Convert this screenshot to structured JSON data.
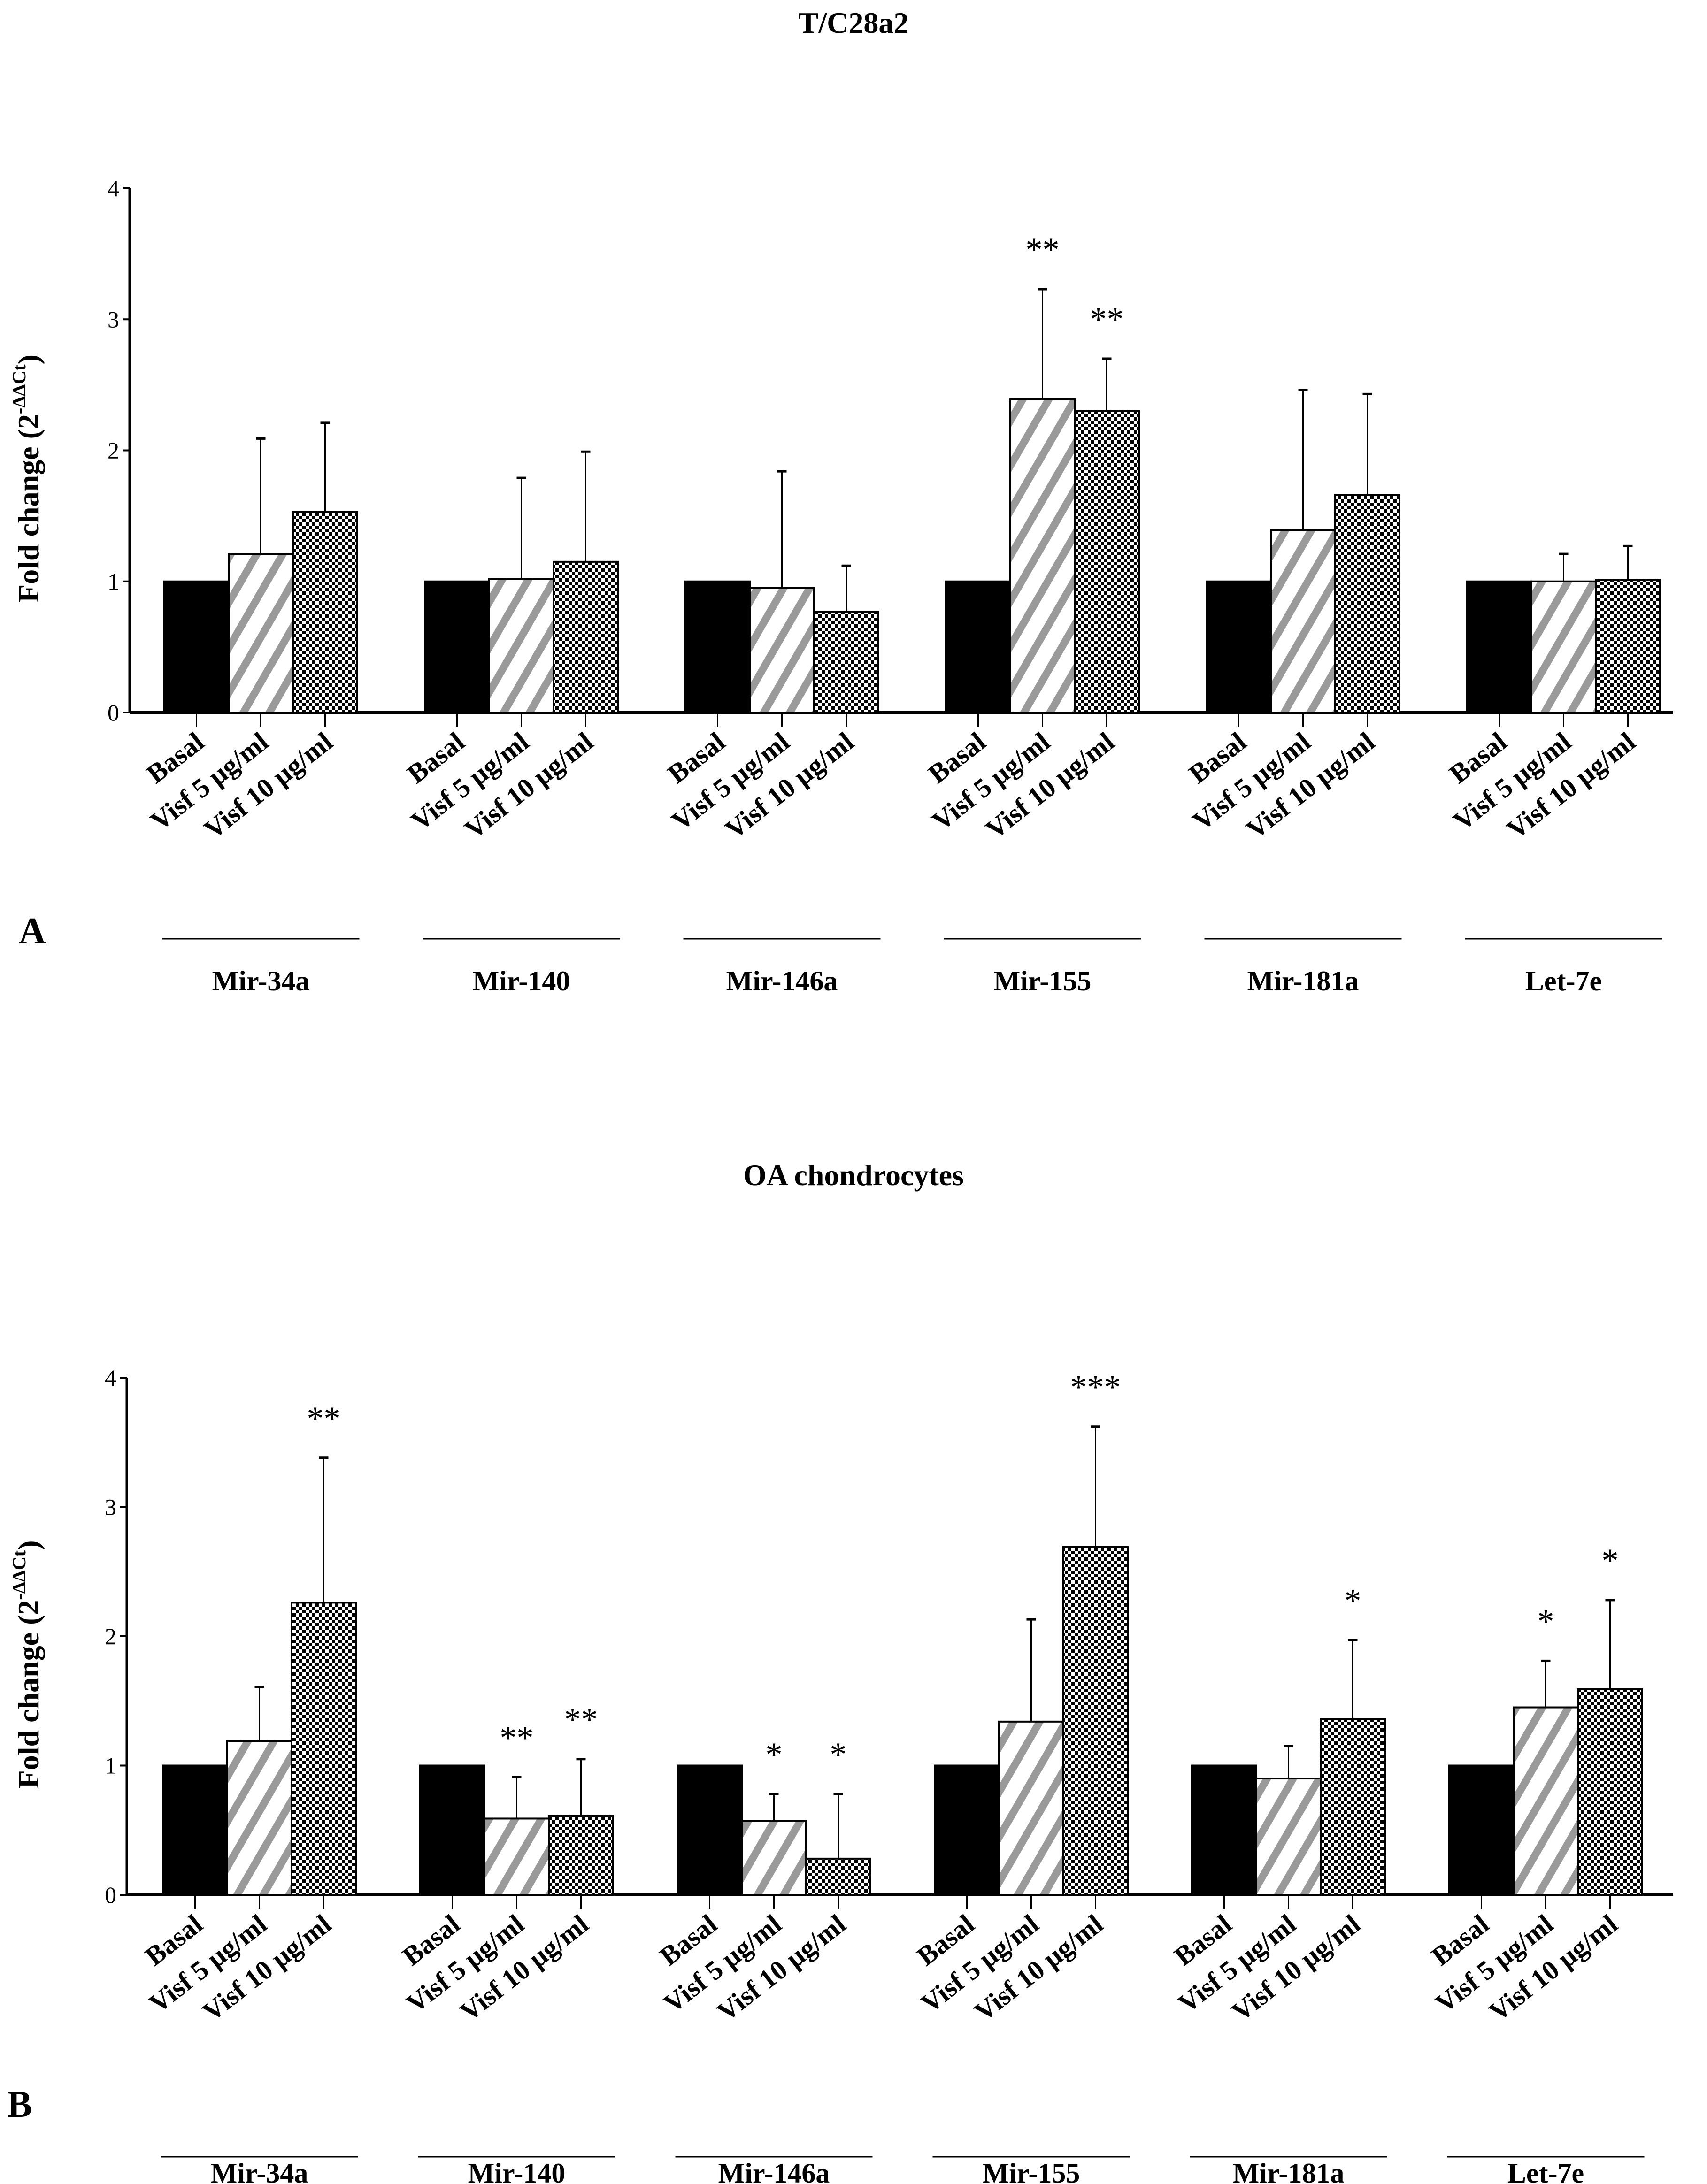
{
  "chart_data": [
    {
      "type": "bar",
      "panel_letter": "A",
      "title": "T/C28a2",
      "ylabel_main": "Fold change (2",
      "ylabel_sup": "-ΔΔCt",
      "ylabel_end": ")",
      "ylim": [
        0,
        4
      ],
      "yticks": [
        "0",
        "1",
        "2",
        "3",
        "4"
      ],
      "bar_labels": [
        "Basal",
        "Visf 5 µg/ml",
        "Visf 10 µg/ml"
      ],
      "groups": [
        "Mir-34a",
        "Mir-140",
        "Mir-146a",
        "Mir-155",
        "Mir-181a",
        "Let-7e"
      ],
      "series": [
        {
          "name": "Basal",
          "values": [
            1,
            1,
            1,
            1,
            1,
            1
          ],
          "err_top": [
            null,
            null,
            null,
            null,
            null,
            null
          ],
          "stars": [
            "",
            "",
            "",
            "",
            "",
            ""
          ]
        },
        {
          "name": "Visf 5 µg/ml",
          "values": [
            1.21,
            1.02,
            0.95,
            2.39,
            1.39,
            1.0
          ],
          "err_top": [
            2.09,
            1.79,
            1.84,
            3.23,
            2.46,
            1.21
          ],
          "stars": [
            "",
            "",
            "",
            "**",
            "",
            ""
          ]
        },
        {
          "name": "Visf 10 µg/ml",
          "values": [
            1.53,
            1.15,
            0.77,
            2.3,
            1.66,
            1.01
          ],
          "err_top": [
            2.21,
            1.99,
            1.12,
            2.7,
            2.43,
            1.27
          ],
          "stars": [
            "",
            "",
            "",
            "**",
            "",
            ""
          ]
        }
      ]
    },
    {
      "type": "bar",
      "panel_letter": "B",
      "title": "OA chondrocytes",
      "ylabel_main": "Fold change (2",
      "ylabel_sup": "-ΔΔCt",
      "ylabel_end": ")",
      "ylim": [
        0,
        4
      ],
      "yticks": [
        "0",
        "1",
        "2",
        "3",
        "4"
      ],
      "bar_labels": [
        "Basal",
        "Visf 5 µg/ml",
        "Visf 10 µg/ml"
      ],
      "groups": [
        "Mir-34a",
        "Mir-140",
        "Mir-146a",
        "Mir-155",
        "Mir-181a",
        "Let-7e"
      ],
      "series": [
        {
          "name": "Basal",
          "values": [
            1,
            1,
            1,
            1,
            1,
            1
          ],
          "err_top": [
            null,
            null,
            null,
            null,
            null,
            null
          ],
          "stars": [
            "",
            "",
            "",
            "",
            "",
            ""
          ]
        },
        {
          "name": "Visf 5 µg/ml",
          "values": [
            1.19,
            0.59,
            0.57,
            1.34,
            0.9,
            1.45
          ],
          "err_top": [
            1.61,
            0.91,
            0.78,
            2.13,
            1.15,
            1.81
          ],
          "stars": [
            "",
            "**",
            "*",
            "",
            "",
            "*"
          ]
        },
        {
          "name": "Visf 10 µg/ml",
          "values": [
            2.26,
            0.61,
            0.28,
            2.69,
            1.36,
            1.59
          ],
          "err_top": [
            3.38,
            1.05,
            0.78,
            3.62,
            1.97,
            2.28
          ],
          "stars": [
            "**",
            "**",
            "*",
            "***",
            "*",
            "*"
          ]
        }
      ]
    }
  ]
}
